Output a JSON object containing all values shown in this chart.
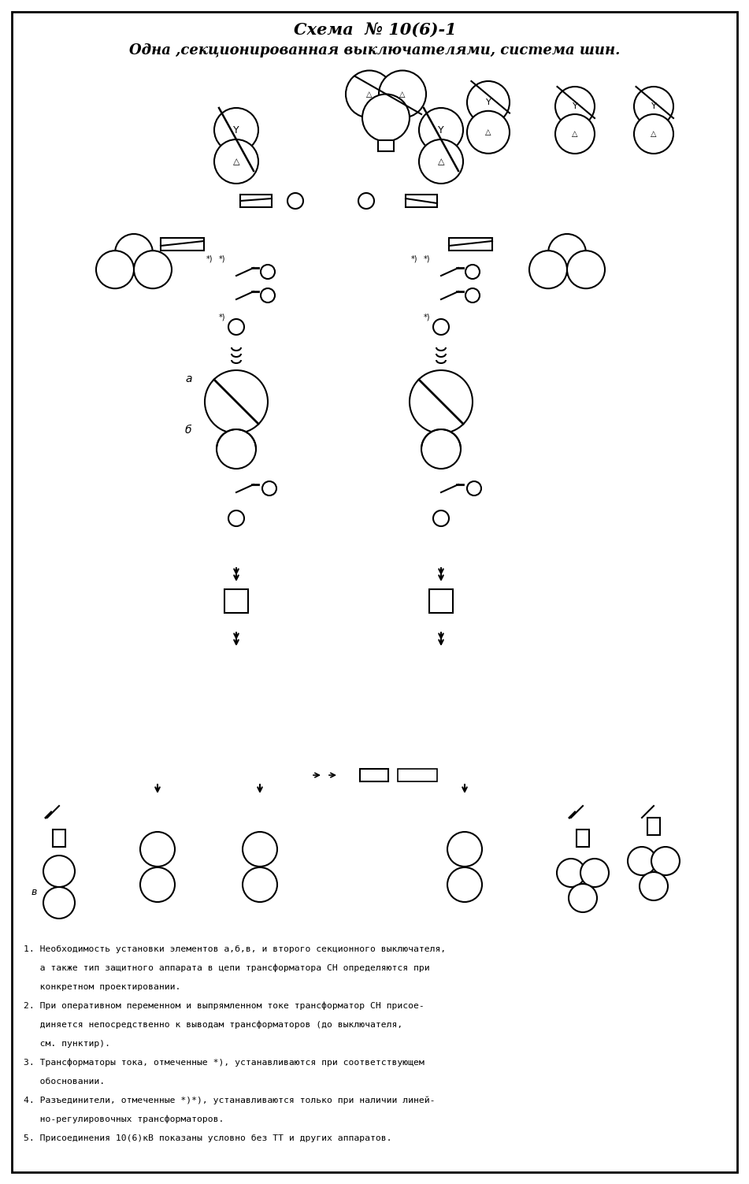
{
  "title1": "Схема  №†10(6)-1",
  "title2": "Одна ,секционированная выключателями, система шин.",
  "bg_color": "#ffffff",
  "line_color": "#000000",
  "notes": [
    "1. Необходимость установки элементов а,б,в, и второго секционного выключателя,",
    "   а также тип защитного аппарата в цепи трансформатора СН определяются при",
    "   конкретном проектировании.",
    "2. При оперативном переменном и выпрямленном токе трансформатор СН присое-",
    "   диняется непосредственно к выводам трансформаторов (до выключателя,",
    "   см. пунктир).",
    "3. Трансформаторы тока, отмеченные *), устанавливаются при соответствующем",
    "   обосновании.",
    "4. Разъединители, отмеченные *)*), устанавливаются только при наличии линей-",
    "   но-регулировочных трансформаторов.",
    "5. Присоединения 10(6)кВ показаны условно без ТТ и других аппаратов."
  ]
}
